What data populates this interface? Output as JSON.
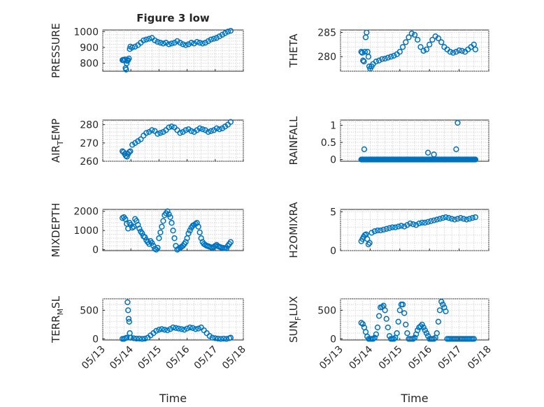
{
  "figure": {
    "title": "Figure 3 low",
    "marker_color": "#0072BD"
  },
  "chart_data": [
    {
      "type": "scatter",
      "title": "Figure 3 low",
      "ylabel": "PRESSURE",
      "xlim": [
        "05/13",
        "05/18"
      ],
      "ylim": [
        750,
        1010
      ],
      "yticks": [
        800,
        900,
        1000
      ],
      "xticks": [
        "05/13",
        "05/14",
        "05/15",
        "05/16",
        "05/17",
        "05/18"
      ],
      "show_xticklabels": false,
      "grid": true,
      "x": [
        13.7,
        13.73,
        13.76,
        13.79,
        13.81,
        13.83,
        13.85,
        13.87,
        13.9,
        13.93,
        13.96,
        13.98,
        14.05,
        14.15,
        14.25,
        14.35,
        14.45,
        14.55,
        14.65,
        14.75,
        14.85,
        14.95,
        15.05,
        15.15,
        15.25,
        15.35,
        15.45,
        15.55,
        15.65,
        15.75,
        15.85,
        15.95,
        16.05,
        16.15,
        16.25,
        16.35,
        16.45,
        16.55,
        16.65,
        16.75,
        16.85,
        16.95,
        17.05,
        17.15,
        17.25,
        17.35,
        17.45,
        17.55
      ],
      "y": [
        820,
        822,
        818,
        825,
        770,
        760,
        800,
        815,
        820,
        830,
        890,
        905,
        900,
        905,
        915,
        930,
        945,
        950,
        955,
        960,
        945,
        935,
        930,
        925,
        930,
        920,
        925,
        930,
        940,
        930,
        920,
        915,
        920,
        930,
        925,
        935,
        930,
        925,
        930,
        940,
        950,
        955,
        960,
        970,
        980,
        990,
        1000,
        1005
      ]
    },
    {
      "type": "scatter",
      "ylabel": "THETA",
      "xlim": [
        "05/13",
        "05/18"
      ],
      "ylim": [
        277,
        285.5
      ],
      "yticks": [
        280,
        285
      ],
      "show_xticklabels": false,
      "grid": true,
      "x": [
        13.7,
        13.73,
        13.76,
        13.79,
        13.82,
        13.85,
        13.88,
        13.91,
        13.94,
        13.97,
        14.0,
        14.05,
        14.1,
        14.2,
        14.3,
        14.4,
        14.5,
        14.6,
        14.7,
        14.8,
        14.9,
        15.0,
        15.1,
        15.2,
        15.3,
        15.4,
        15.5,
        15.6,
        15.7,
        15.8,
        15.9,
        16.0,
        16.1,
        16.2,
        16.3,
        16.4,
        16.5,
        16.6,
        16.7,
        16.8,
        16.9,
        17.0,
        17.1,
        17.2,
        17.3,
        17.4,
        17.5,
        17.55
      ],
      "y": [
        281,
        280.8,
        279.2,
        279,
        281,
        284,
        285,
        281,
        280,
        278,
        277.5,
        278,
        278.5,
        279,
        279.2,
        279.5,
        279.6,
        279.8,
        280,
        280.2,
        280.5,
        281,
        282,
        283,
        284,
        284.8,
        284.5,
        283.5,
        282,
        281.2,
        281.5,
        282.5,
        283.5,
        284.2,
        283.8,
        283,
        282,
        281.5,
        281,
        280.8,
        281,
        281.3,
        281.2,
        281,
        281.5,
        282,
        282.5,
        281.5
      ]
    },
    {
      "type": "scatter",
      "ylabel": "AIR_TEMP",
      "xlim": [
        "05/13",
        "05/18"
      ],
      "ylim": [
        260,
        282.5
      ],
      "yticks": [
        260,
        270,
        280
      ],
      "show_xticklabels": false,
      "grid": true,
      "x": [
        13.7,
        13.74,
        13.78,
        13.82,
        13.86,
        13.9,
        13.94,
        13.98,
        14.05,
        14.15,
        14.25,
        14.35,
        14.45,
        14.55,
        14.65,
        14.75,
        14.85,
        14.95,
        15.05,
        15.15,
        15.25,
        15.35,
        15.45,
        15.55,
        15.65,
        15.75,
        15.85,
        15.95,
        16.05,
        16.15,
        16.25,
        16.35,
        16.45,
        16.55,
        16.65,
        16.75,
        16.85,
        16.95,
        17.05,
        17.15,
        17.25,
        17.35,
        17.45,
        17.55
      ],
      "y": [
        265.5,
        265,
        264,
        263,
        262.5,
        264,
        265,
        265.5,
        269,
        270,
        271,
        272,
        274,
        275.5,
        276,
        277,
        276.5,
        275,
        275.5,
        276,
        277,
        278.5,
        279,
        278.5,
        277,
        275.5,
        276,
        277,
        277.5,
        276.5,
        276,
        277,
        278,
        277.5,
        277,
        276,
        276.5,
        277,
        278,
        277.5,
        278,
        279,
        280,
        281.5
      ]
    },
    {
      "type": "scatter",
      "ylabel": "RAINFALL",
      "xlim": [
        "05/13",
        "05/18"
      ],
      "ylim": [
        -0.05,
        1.15
      ],
      "yticks": [
        0,
        0.5,
        1
      ],
      "show_xticklabels": false,
      "grid": true,
      "x_range": [
        13.7,
        17.55
      ],
      "baseline": 0,
      "spikes": [
        {
          "x": 13.8,
          "y": 0.3
        },
        {
          "x": 15.95,
          "y": 0.2
        },
        {
          "x": 16.15,
          "y": 0.15
        },
        {
          "x": 16.9,
          "y": 0.3
        },
        {
          "x": 16.95,
          "y": 1.07
        }
      ]
    },
    {
      "type": "scatter",
      "ylabel": "MIXDEPTH",
      "xlim": [
        "05/13",
        "05/18"
      ],
      "ylim": [
        -50,
        2100
      ],
      "yticks": [
        0,
        1000,
        2000
      ],
      "show_xticklabels": false,
      "grid": true,
      "x": [
        13.7,
        13.75,
        13.8,
        13.85,
        13.9,
        13.95,
        14.0,
        14.05,
        14.1,
        14.15,
        14.2,
        14.25,
        14.3,
        14.35,
        14.4,
        14.45,
        14.5,
        14.55,
        14.6,
        14.65,
        14.7,
        14.75,
        14.8,
        14.85,
        14.9,
        14.95,
        15.0,
        15.05,
        15.1,
        15.15,
        15.2,
        15.25,
        15.3,
        15.35,
        15.4,
        15.45,
        15.5,
        15.55,
        15.6,
        15.65,
        15.7,
        15.75,
        15.8,
        15.85,
        15.9,
        15.95,
        16.0,
        16.05,
        16.1,
        16.15,
        16.2,
        16.25,
        16.3,
        16.35,
        16.4,
        16.45,
        16.5,
        16.55,
        16.6,
        16.65,
        16.7,
        16.75,
        16.8,
        16.85,
        16.9,
        16.95,
        17.0,
        17.05,
        17.1,
        17.15,
        17.2,
        17.25,
        17.3,
        17.35,
        17.4,
        17.45,
        17.5,
        17.55
      ],
      "y": [
        1650,
        1700,
        1600,
        1350,
        1100,
        1400,
        1300,
        1150,
        1200,
        1600,
        1500,
        1300,
        1100,
        950,
        850,
        700,
        650,
        500,
        400,
        300,
        450,
        350,
        200,
        50,
        0,
        100,
        600,
        900,
        1200,
        1500,
        1800,
        1900,
        2000,
        1850,
        1700,
        1400,
        1000,
        600,
        200,
        0,
        50,
        100,
        150,
        200,
        300,
        400,
        600,
        850,
        1000,
        1150,
        1250,
        1300,
        1350,
        1400,
        1200,
        900,
        600,
        400,
        300,
        250,
        200,
        180,
        150,
        120,
        100,
        150,
        200,
        250,
        180,
        150,
        120,
        100,
        90,
        80,
        70,
        200,
        300,
        400
      ]
    },
    {
      "type": "scatter",
      "ylabel": "H2OMIXRA",
      "xlim": [
        "05/13",
        "05/18"
      ],
      "ylim": [
        0,
        5.3
      ],
      "yticks": [
        0,
        5
      ],
      "show_xticklabels": false,
      "grid": true,
      "x": [
        13.7,
        13.74,
        13.78,
        13.82,
        13.86,
        13.9,
        13.94,
        13.98,
        14.05,
        14.15,
        14.25,
        14.35,
        14.45,
        14.55,
        14.65,
        14.75,
        14.85,
        14.95,
        15.05,
        15.15,
        15.25,
        15.35,
        15.45,
        15.55,
        15.65,
        15.75,
        15.85,
        15.95,
        16.05,
        16.15,
        16.25,
        16.35,
        16.45,
        16.55,
        16.65,
        16.75,
        16.85,
        16.95,
        17.05,
        17.15,
        17.25,
        17.35,
        17.45,
        17.55
      ],
      "y": [
        1.2,
        1.5,
        1.8,
        2.0,
        2.1,
        1.5,
        0.8,
        1.0,
        2.3,
        2.5,
        2.6,
        2.6,
        2.7,
        2.8,
        2.9,
        3.0,
        3.0,
        3.1,
        3.2,
        3.1,
        3.3,
        3.5,
        3.4,
        3.3,
        3.5,
        3.6,
        3.6,
        3.7,
        3.8,
        3.9,
        4.0,
        4.1,
        4.2,
        4.3,
        4.2,
        4.1,
        4.0,
        4.1,
        4.2,
        4.1,
        4.0,
        4.1,
        4.2,
        4.3
      ]
    },
    {
      "type": "scatter",
      "ylabel": "TERR_MSL",
      "xlim": [
        "05/13",
        "05/18"
      ],
      "ylim": [
        -20,
        700
      ],
      "yticks": [
        0,
        500
      ],
      "xticks": [
        "05/13",
        "05/14",
        "05/15",
        "05/16",
        "05/17",
        "05/18"
      ],
      "show_xticklabels": true,
      "xlabel": "Time",
      "grid": true,
      "x": [
        13.7,
        13.75,
        13.8,
        13.85,
        13.88,
        13.9,
        13.92,
        13.94,
        13.96,
        13.98,
        14.0,
        14.1,
        14.2,
        14.3,
        14.4,
        14.5,
        14.6,
        14.7,
        14.8,
        14.9,
        15.0,
        15.1,
        15.2,
        15.3,
        15.4,
        15.5,
        15.6,
        15.7,
        15.8,
        15.9,
        16.0,
        16.1,
        16.2,
        16.3,
        16.4,
        16.5,
        16.6,
        16.7,
        16.8,
        16.9,
        17.0,
        17.1,
        17.2,
        17.3,
        17.4,
        17.5,
        17.55
      ],
      "y": [
        0,
        0,
        10,
        20,
        640,
        500,
        350,
        300,
        100,
        20,
        20,
        10,
        5,
        5,
        0,
        5,
        20,
        60,
        100,
        140,
        160,
        170,
        160,
        150,
        170,
        200,
        190,
        180,
        170,
        160,
        180,
        200,
        190,
        170,
        180,
        200,
        150,
        100,
        50,
        20,
        10,
        5,
        0,
        5,
        0,
        10,
        20
      ]
    },
    {
      "type": "scatter",
      "ylabel": "SUN_FLUX",
      "xlim": [
        "05/13",
        "05/18"
      ],
      "ylim": [
        -20,
        700
      ],
      "yticks": [
        0,
        500
      ],
      "xticks": [
        "05/13",
        "05/14",
        "05/15",
        "05/16",
        "05/17",
        "05/18"
      ],
      "show_xticklabels": true,
      "xlabel": "Time",
      "grid": true,
      "x": [
        13.7,
        13.75,
        13.8,
        13.85,
        13.9,
        13.95,
        14.0,
        14.05,
        14.1,
        14.15,
        14.2,
        14.25,
        14.3,
        14.35,
        14.4,
        14.45,
        14.5,
        14.55,
        14.6,
        14.65,
        14.7,
        14.75,
        14.8,
        14.85,
        14.9,
        14.95,
        15.0,
        15.05,
        15.1,
        15.15,
        15.2,
        15.25,
        15.3,
        15.35,
        15.4,
        15.45,
        15.5,
        15.55,
        15.6,
        15.65,
        15.7,
        15.75,
        15.8,
        15.85,
        15.9,
        15.95,
        16.0,
        16.05,
        16.1,
        16.15,
        16.2,
        16.25,
        16.3,
        16.35,
        16.4,
        16.45,
        16.5,
        16.55,
        16.6,
        16.65,
        16.7,
        16.75,
        16.8,
        16.85,
        16.9,
        16.95,
        17.0,
        17.05,
        17.1,
        17.15,
        17.2,
        17.25,
        17.3,
        17.35,
        17.4,
        17.45,
        17.5
      ],
      "y": [
        280,
        260,
        200,
        120,
        40,
        0,
        0,
        0,
        0,
        20,
        80,
        200,
        400,
        550,
        560,
        580,
        500,
        350,
        200,
        50,
        0,
        0,
        0,
        20,
        100,
        300,
        500,
        600,
        600,
        450,
        250,
        100,
        0,
        0,
        0,
        0,
        20,
        80,
        150,
        200,
        220,
        250,
        200,
        150,
        100,
        50,
        0,
        0,
        0,
        0,
        20,
        100,
        300,
        500,
        650,
        600,
        550,
        480,
        0,
        0,
        0,
        0,
        0,
        0,
        0,
        0,
        0,
        0,
        0,
        0,
        0,
        0,
        0,
        0,
        0,
        0,
        0
      ]
    }
  ]
}
